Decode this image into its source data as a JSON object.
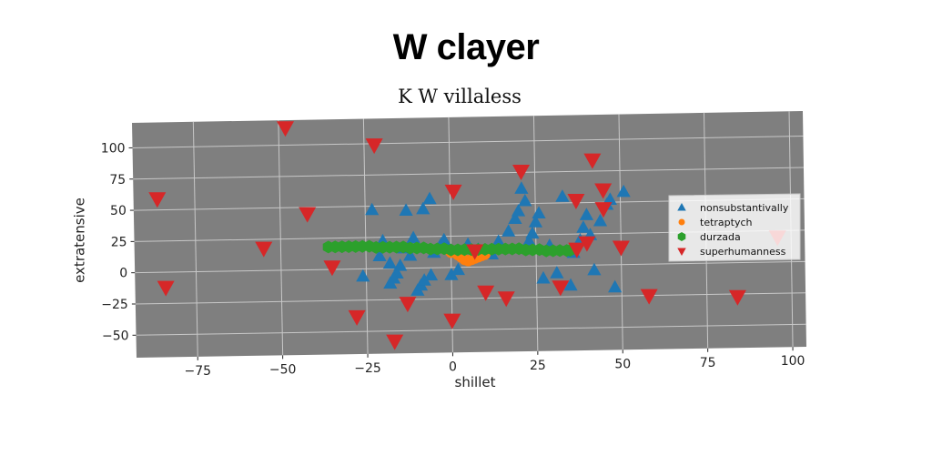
{
  "chart_data": {
    "type": "scatter",
    "title": "W clayer",
    "subtitle": "K W villaless",
    "xlabel": "shillet",
    "ylabel": "extratensive",
    "xlim": [
      -93,
      104
    ],
    "ylim": [
      -68,
      120
    ],
    "xticks": [
      -75,
      -50,
      -25,
      0,
      25,
      50,
      75,
      100
    ],
    "yticks": [
      -50,
      -25,
      0,
      25,
      50,
      75,
      100
    ],
    "grid": true,
    "legend_position": "right",
    "series": [
      {
        "name": "nonsubstantivally",
        "color": "#1f77b4",
        "marker": "triangle-up",
        "points": [
          [
            -23,
            47
          ],
          [
            -20,
            22
          ],
          [
            -18,
            -12
          ],
          [
            -16,
            -4
          ],
          [
            -15,
            2
          ],
          [
            -17,
            -8
          ],
          [
            -14,
            16
          ],
          [
            -12,
            10
          ],
          [
            -10,
            -18
          ],
          [
            -9,
            -14
          ],
          [
            -8,
            -10
          ],
          [
            -6,
            -6
          ],
          [
            -5,
            12
          ],
          [
            -3,
            18
          ],
          [
            -2,
            22
          ],
          [
            0,
            -6
          ],
          [
            2,
            -2
          ],
          [
            -8,
            47
          ],
          [
            -6,
            55
          ],
          [
            -11,
            24
          ],
          [
            -18,
            4
          ],
          [
            -21,
            10
          ],
          [
            5,
            18
          ],
          [
            8,
            14
          ],
          [
            12,
            10
          ],
          [
            14,
            20
          ],
          [
            17,
            28
          ],
          [
            19,
            38
          ],
          [
            20,
            44
          ],
          [
            22,
            52
          ],
          [
            23,
            20
          ],
          [
            24,
            26
          ],
          [
            25,
            35
          ],
          [
            26,
            42
          ],
          [
            27,
            -10
          ],
          [
            29,
            16
          ],
          [
            31,
            -6
          ],
          [
            33,
            55
          ],
          [
            35,
            -16
          ],
          [
            36,
            10
          ],
          [
            38,
            20
          ],
          [
            39,
            30
          ],
          [
            40,
            40
          ],
          [
            41,
            24
          ],
          [
            42,
            -4
          ],
          [
            44,
            35
          ],
          [
            46,
            48
          ],
          [
            47,
            52
          ],
          [
            48,
            -18
          ],
          [
            51,
            58
          ],
          [
            -26,
            -6
          ],
          [
            -13,
            46
          ],
          [
            21,
            62
          ]
        ]
      },
      {
        "name": "tetraptych",
        "color": "#ff7f0e",
        "marker": "circle",
        "points": [
          [
            0,
            12
          ],
          [
            2,
            10
          ],
          [
            3,
            8
          ],
          [
            4,
            6
          ],
          [
            5,
            5
          ],
          [
            6,
            6
          ],
          [
            7,
            7
          ],
          [
            8,
            8
          ],
          [
            9,
            9
          ],
          [
            10,
            10
          ]
        ]
      },
      {
        "name": "durzada",
        "color": "#2ca02c",
        "marker": "hexagon",
        "points": [
          [
            -36,
            18
          ],
          [
            -34,
            18
          ],
          [
            -32,
            18
          ],
          [
            -30,
            18
          ],
          [
            -28,
            18
          ],
          [
            -26,
            18
          ],
          [
            -24,
            18
          ],
          [
            -22,
            17
          ],
          [
            -20,
            17
          ],
          [
            -18,
            17
          ],
          [
            -16,
            17
          ],
          [
            -14,
            17
          ],
          [
            -12,
            16
          ],
          [
            -10,
            16
          ],
          [
            -8,
            16
          ],
          [
            -6,
            15
          ],
          [
            -4,
            15
          ],
          [
            -2,
            15
          ],
          [
            0,
            14
          ],
          [
            2,
            14
          ],
          [
            4,
            14
          ],
          [
            6,
            14
          ],
          [
            8,
            14
          ],
          [
            10,
            14
          ],
          [
            12,
            14
          ],
          [
            14,
            14
          ],
          [
            16,
            14
          ],
          [
            18,
            14
          ],
          [
            20,
            14
          ],
          [
            22,
            13
          ],
          [
            24,
            13
          ],
          [
            26,
            13
          ],
          [
            28,
            12
          ],
          [
            30,
            12
          ],
          [
            32,
            12
          ],
          [
            34,
            12
          ],
          [
            35,
            12
          ]
        ]
      },
      {
        "name": "superhumanness",
        "color": "#d62728",
        "marker": "triangle-down",
        "points": [
          [
            -86,
            59
          ],
          [
            -84,
            -12
          ],
          [
            -48,
            114
          ],
          [
            -42,
            45
          ],
          [
            -55,
            18
          ],
          [
            -35,
            2
          ],
          [
            -28,
            -38
          ],
          [
            -22,
            99
          ],
          [
            -17,
            -58
          ],
          [
            -13,
            -28
          ],
          [
            0,
            -42
          ],
          [
            1,
            61
          ],
          [
            7,
            13
          ],
          [
            10,
            -20
          ],
          [
            16,
            -25
          ],
          [
            21,
            76
          ],
          [
            32,
            -17
          ],
          [
            37,
            52
          ],
          [
            37,
            13
          ],
          [
            40,
            18
          ],
          [
            42,
            84
          ],
          [
            45,
            60
          ],
          [
            45,
            45
          ],
          [
            50,
            14
          ],
          [
            58,
            -25
          ],
          [
            84,
            -27
          ],
          [
            96,
            20
          ]
        ]
      }
    ]
  }
}
